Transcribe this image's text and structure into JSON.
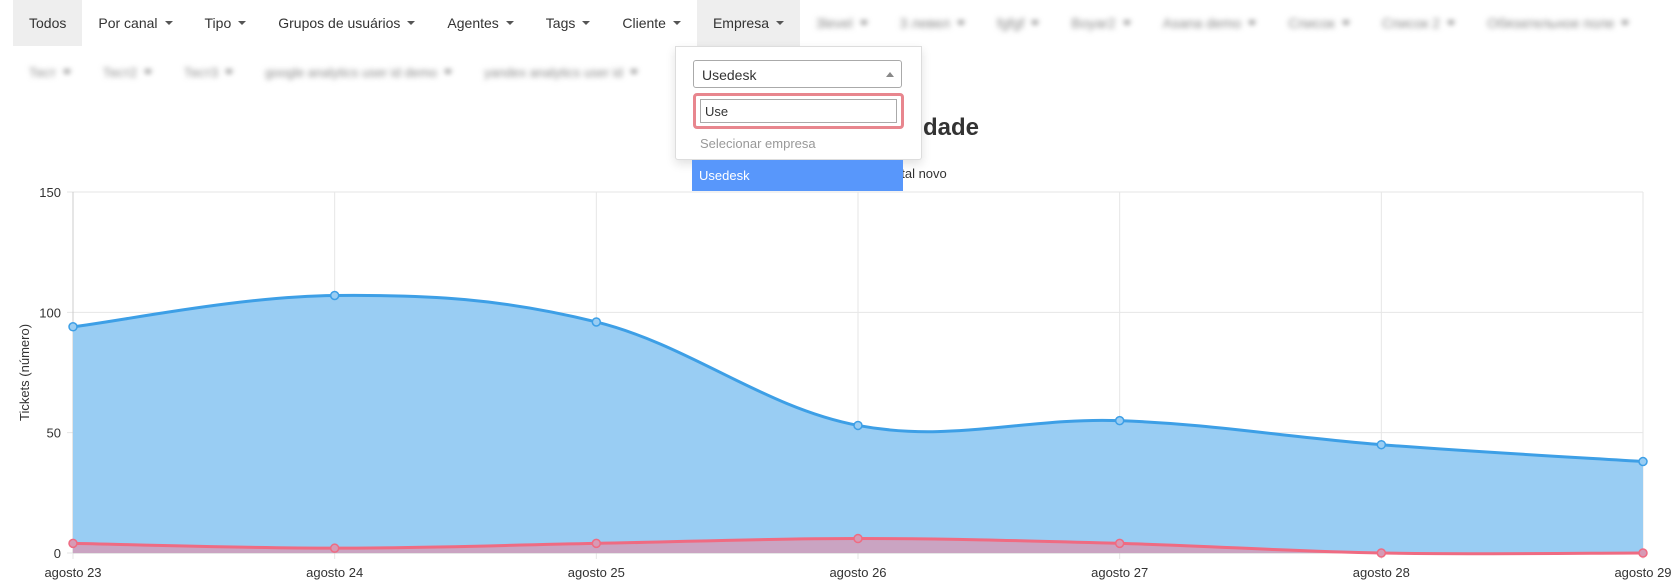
{
  "filters": {
    "row1": [
      {
        "label": "Todos",
        "state": "active",
        "caret": false
      },
      {
        "label": "Por canal",
        "state": "normal",
        "caret": true
      },
      {
        "label": "Tipo",
        "state": "normal",
        "caret": true
      },
      {
        "label": "Grupos de usuários",
        "state": "normal",
        "caret": true
      },
      {
        "label": "Agentes",
        "state": "normal",
        "caret": true
      },
      {
        "label": "Tags",
        "state": "normal",
        "caret": true
      },
      {
        "label": "Cliente",
        "state": "normal",
        "caret": true
      },
      {
        "label": "Empresa",
        "state": "open",
        "caret": true
      },
      {
        "label": "3level",
        "state": "blurred",
        "caret": true
      },
      {
        "label": "3 левел",
        "state": "blurred",
        "caret": true
      },
      {
        "label": "fgfgf",
        "state": "blurred",
        "caret": true
      },
      {
        "label": "Boyar2",
        "state": "blurred",
        "caret": true
      },
      {
        "label": "Asana demo",
        "state": "blurred",
        "caret": true
      },
      {
        "label": "Список",
        "state": "blurred",
        "caret": true
      },
      {
        "label": "Список 2",
        "state": "blurred",
        "caret": true
      },
      {
        "label": "Обязательное поле",
        "state": "blurred",
        "caret": true
      }
    ],
    "row2": [
      {
        "label": "Тест",
        "state": "blurred",
        "caret": true
      },
      {
        "label": "Тест2",
        "state": "blurred",
        "caret": true
      },
      {
        "label": "Тест3",
        "state": "blurred",
        "caret": true
      },
      {
        "label": "google analytics user id demo",
        "state": "blurred",
        "caret": true
      },
      {
        "label": "yandex analytics user id",
        "state": "blurred",
        "caret": true
      }
    ]
  },
  "dropdown": {
    "selected_value": "Usedesk",
    "search_value": "Use",
    "options": [
      {
        "label": "Selecionar empresa",
        "highlighted": false
      },
      {
        "label": "Usedesk",
        "highlighted": true
      }
    ],
    "highlight_color": "#5897fb",
    "focus_ring_color": "#e8868e"
  },
  "chart_data": {
    "type": "area",
    "title_visible": "vidade",
    "legend_visible": "otal novo",
    "ylabel": "Tickets (número)",
    "categories": [
      "agosto 23",
      "agosto 24",
      "agosto 25",
      "agosto 26",
      "agosto 27",
      "agosto 28",
      "agosto 29"
    ],
    "ylim": [
      0,
      150
    ],
    "yticks": [
      0,
      50,
      100,
      150
    ],
    "grid": true,
    "series": [
      {
        "color": "#3d9fe6",
        "fill": "#99cdf3",
        "values": [
          94,
          107,
          96,
          53,
          55,
          45,
          38
        ]
      },
      {
        "color": "#ef6b82",
        "fill": "#d69ab5",
        "values": [
          4,
          2,
          4,
          6,
          4,
          0,
          0
        ]
      }
    ]
  }
}
